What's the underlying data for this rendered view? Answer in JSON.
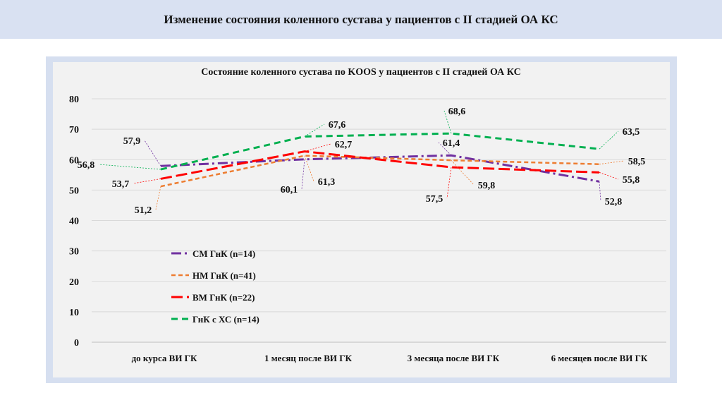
{
  "header": {
    "title": "Изменение состояния коленного сустава у пациентов с II стадией ОА КС"
  },
  "chart_data": {
    "type": "line",
    "title": "Состояние коленного сустава по KOOS у пациентов с II стадией ОА КС",
    "xlabel": "",
    "ylabel": "",
    "ylim": [
      0,
      80
    ],
    "yticks": [
      "0",
      "10",
      "20",
      "30",
      "40",
      "50",
      "60",
      "70",
      "80"
    ],
    "grid": true,
    "legend_position": "bottom-left",
    "categories": [
      "до курса ВИ ГК",
      "1 месяц после ВИ ГК",
      "3 месяца после ВИ ГК",
      "6 месяцев после ВИ ГК"
    ],
    "series": [
      {
        "name": "СМ ГнК (n=14)",
        "color": "#7030a0",
        "values": [
          57.9,
          60.1,
          61.4,
          52.8
        ],
        "labels": [
          "57,9",
          "60,1",
          "61,4",
          "52,8"
        ]
      },
      {
        "name": "НМ ГнК (n=41)",
        "color": "#ed7d31",
        "values": [
          51.2,
          61.3,
          59.8,
          58.5
        ],
        "labels": [
          "51,2",
          "61,3",
          "59,8",
          "58,5"
        ]
      },
      {
        "name": "ВМ ГнК (n=22)",
        "color": "#ff0000",
        "values": [
          53.7,
          62.7,
          57.5,
          55.8
        ],
        "labels": [
          "53,7",
          "62,7",
          "57,5",
          "55,8"
        ]
      },
      {
        "name": "ГнК с ХС (n=14)",
        "color": "#00b050",
        "values": [
          56.8,
          67.6,
          68.6,
          63.5
        ],
        "labels": [
          "56,8",
          "67,6",
          "68,6",
          "63,5"
        ]
      }
    ]
  }
}
